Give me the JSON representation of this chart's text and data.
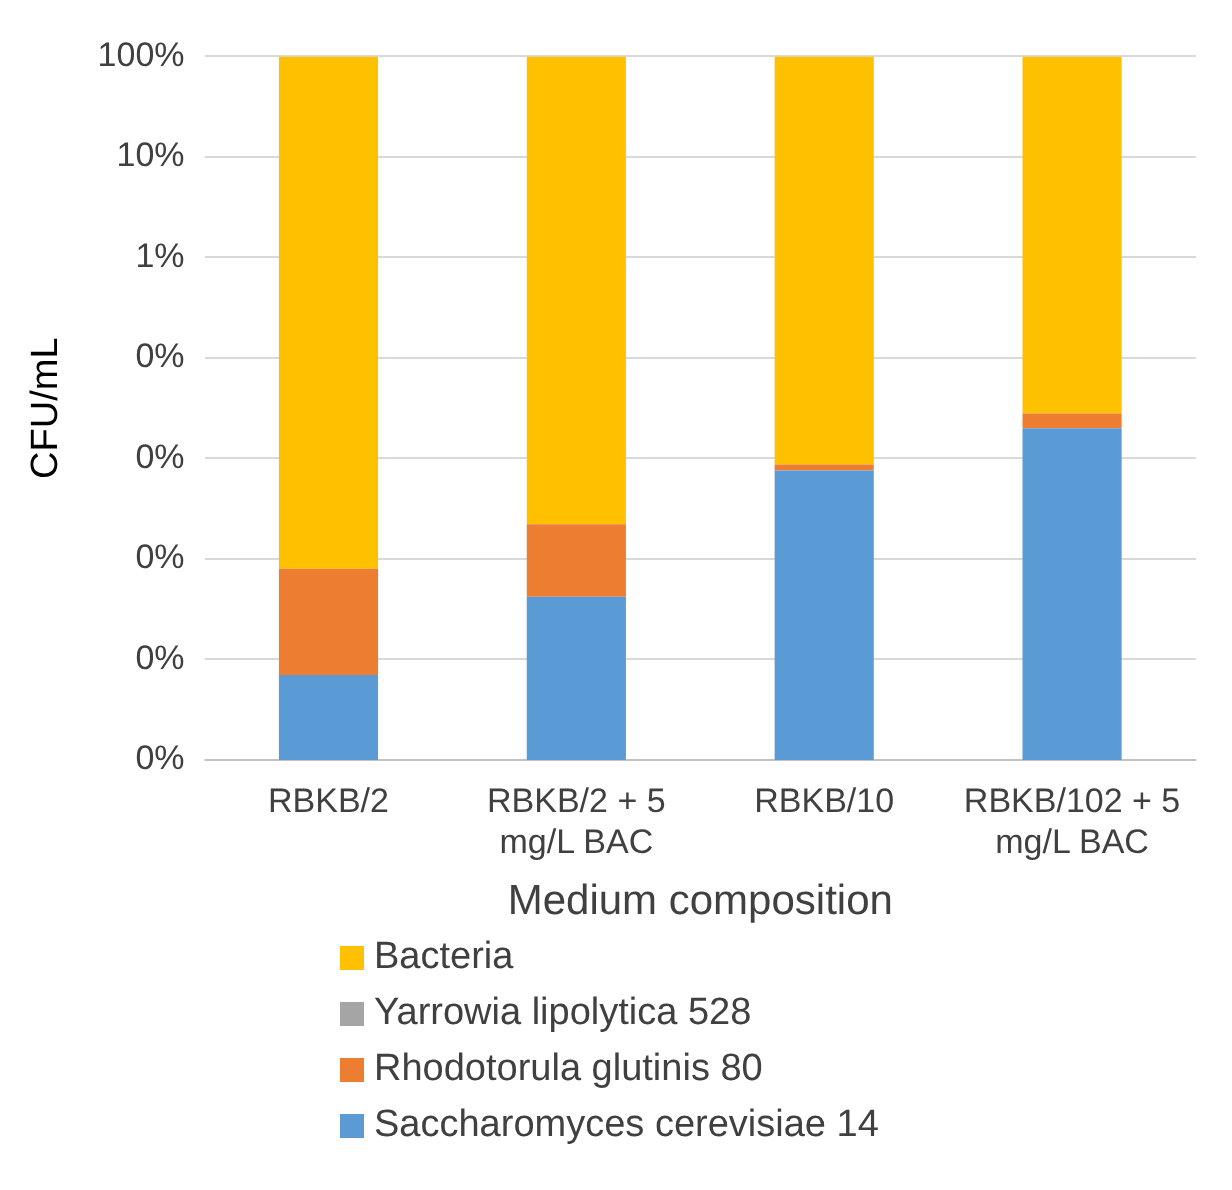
{
  "chart_data": {
    "type": "bar",
    "stacked": true,
    "log": "y",
    "xlabel": "Medium composition",
    "ylabel": "CFU/mL",
    "categories": [
      "RBKB/2",
      "RBKB/2 + 5 mg/L BAC",
      "RBKB/10",
      "RBKB/102 + 5 mg/L BAC"
    ],
    "series": [
      {
        "name": "Saccharomyces cerevisiae 14",
        "color": "#5b9bd5",
        "values": [
          7e-07,
          4.2e-06,
          7.6e-05,
          0.0002
        ]
      },
      {
        "name": "Rhodotorula glutinis 80",
        "color": "#ed7d31",
        "values": [
          7.3e-06,
          1.8e-05,
          1.1e-05,
          8e-05
        ]
      },
      {
        "name": "Yarrowia lipolytica 528",
        "color": "#a5a5a5",
        "values": [
          null,
          null,
          null,
          null
        ]
      },
      {
        "name": "Bacteria",
        "color": "#ffc000",
        "values": [
          0.99999,
          0.99997,
          0.99991,
          0.9997
        ]
      }
    ],
    "ylim": [
      1e-07,
      1
    ],
    "yticks": [
      {
        "value": 1e-07,
        "label": "0%"
      },
      {
        "value": 1e-06,
        "label": "0%"
      },
      {
        "value": 1e-05,
        "label": "0%"
      },
      {
        "value": 0.0001,
        "label": "0%"
      },
      {
        "value": 0.001,
        "label": "0%"
      },
      {
        "value": 0.01,
        "label": "1%"
      },
      {
        "value": 0.1,
        "label": "10%"
      },
      {
        "value": 1,
        "label": "100%"
      }
    ],
    "grid": "y",
    "legend": "bottom"
  }
}
